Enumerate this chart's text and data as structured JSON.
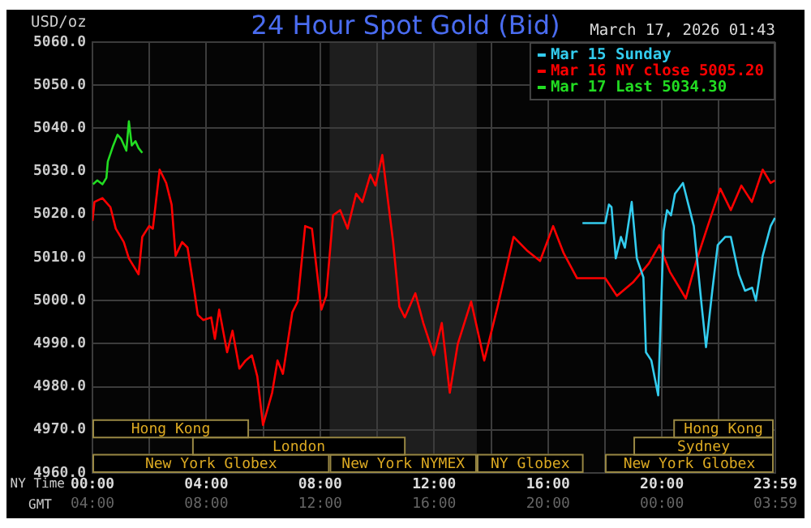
{
  "chart_data": {
    "type": "line",
    "title": "24 Hour Spot Gold (Bid)",
    "ylabel": "USD/oz",
    "xlabel": "NY Time",
    "x2label": "GMT",
    "annotations": [
      "March 17, 2026 01:43"
    ],
    "xlim": [
      0,
      23.9833
    ],
    "xticks": [
      {
        "value": 0,
        "label": "00:00"
      },
      {
        "value": 2,
        "label": null
      },
      {
        "value": 4,
        "label": "04:00"
      },
      {
        "value": 6,
        "label": null
      },
      {
        "value": 8,
        "label": "08:00"
      },
      {
        "value": 10,
        "label": null
      },
      {
        "value": 12,
        "label": "12:00"
      },
      {
        "value": 14,
        "label": null
      },
      {
        "value": 16,
        "label": "16:00"
      },
      {
        "value": 18,
        "label": null
      },
      {
        "value": 20,
        "label": "20:00"
      },
      {
        "value": 22,
        "label": null
      },
      {
        "value": 23.9833,
        "label": "23:59"
      }
    ],
    "x2lim": [
      "2026-03-16T04:00",
      "2026-03-17T03:59"
    ],
    "x2ticks": [
      {
        "value": "2026-03-16T04:00",
        "label": "04:00"
      },
      {
        "value": "2026-03-16T08:00",
        "label": "08:00"
      },
      {
        "value": "2026-03-16T12:00",
        "label": "12:00"
      },
      {
        "value": "2026-03-16T16:00",
        "label": "16:00"
      },
      {
        "value": "2026-03-16T20:00",
        "label": "20:00"
      },
      {
        "value": "2026-03-17T00:00",
        "label": "00:00"
      },
      {
        "value": "2026-03-17T03:59",
        "label": "03:59"
      }
    ],
    "ylim": [
      4960,
      5060
    ],
    "yticks": [
      {
        "value": 4960,
        "label": "4960.0"
      },
      {
        "value": 4970,
        "label": "4970.0"
      },
      {
        "value": 4980,
        "label": "4980.0"
      },
      {
        "value": 4990,
        "label": "4990.0"
      },
      {
        "value": 5000,
        "label": "5000.0"
      },
      {
        "value": 5010,
        "label": "5010.0"
      },
      {
        "value": 5020,
        "label": "5020.0"
      },
      {
        "value": 5030,
        "label": "5030.0"
      },
      {
        "value": 5040,
        "label": "5040.0"
      },
      {
        "value": 5050,
        "label": "5050.0"
      },
      {
        "value": 5060,
        "label": "5060.0"
      }
    ],
    "grid": true,
    "legend": "top right",
    "marker": "none",
    "line_style": "solid",
    "bands": [
      {
        "axis": "x",
        "from": 8.33,
        "to": 13.5,
        "label": null,
        "color": "#1e1e1e"
      },
      {
        "axis": "x",
        "from": 0,
        "to": 8.33,
        "label": "New York Globex"
      },
      {
        "axis": "x",
        "from": 8.33,
        "to": 13.5,
        "label": "New York NYMEX"
      },
      {
        "axis": "x",
        "from": 13.5,
        "to": 17.25,
        "label": "NY Globex"
      },
      {
        "axis": "x",
        "from": 18,
        "to": 24,
        "label": "New York Globex"
      },
      {
        "axis": "x",
        "from": 3.5,
        "to": 11,
        "label": "London"
      },
      {
        "axis": "x",
        "from": 19,
        "to": 24,
        "label": "Sydney"
      },
      {
        "axis": "x",
        "from": 0,
        "to": 5.5,
        "label": "Hong Kong"
      },
      {
        "axis": "x",
        "from": 20.4,
        "to": 24,
        "label": "Hong Kong"
      }
    ],
    "series": [
      {
        "name": "Mar 15 Sunday",
        "color": "#33ccee",
        "x": [
          17.21,
          18.01,
          18.14,
          18.23,
          18.38,
          18.56,
          18.7,
          18.94,
          19.12,
          19.35,
          19.44,
          19.63,
          19.87,
          20.06,
          20.18,
          20.32,
          20.46,
          20.74,
          20.93,
          21.12,
          21.4,
          21.55,
          21.77,
          21.96,
          22.23,
          22.42,
          22.7,
          22.92,
          23.17,
          23.3,
          23.54,
          23.82,
          23.97
        ],
        "values": [
          5018,
          5018,
          5022.3,
          5021.7,
          5009.8,
          5014.8,
          5012.3,
          5022.9,
          5009.8,
          5005.4,
          4988,
          4986.1,
          4978,
          5016.1,
          5021,
          5019.8,
          5024.8,
          5027.3,
          5022.3,
          5017.3,
          4998.6,
          4989.2,
          5002.3,
          5012.9,
          5014.8,
          5014.8,
          5006.1,
          5002.3,
          5003,
          5000,
          5010.4,
          5017.3,
          5019.2
        ]
      },
      {
        "name": "Mar 16 NY close 5005.20",
        "color": "#ff0000",
        "x": [
          0,
          0.07,
          0.35,
          0.63,
          0.82,
          1.1,
          1.28,
          1.62,
          1.75,
          1.99,
          2.12,
          2.36,
          2.59,
          2.78,
          2.92,
          3.15,
          3.34,
          3.56,
          3.7,
          3.89,
          4.17,
          4.3,
          4.45,
          4.73,
          4.92,
          5.16,
          5.38,
          5.6,
          5.79,
          5.99,
          6.31,
          6.5,
          6.69,
          7.02,
          7.21,
          7.47,
          7.71,
          8.04,
          8.21,
          8.45,
          8.7,
          8.96,
          9.26,
          9.48,
          9.76,
          9.94,
          10.18,
          10.56,
          10.78,
          10.97,
          11.34,
          11.62,
          11.99,
          12.27,
          12.55,
          12.83,
          13.3,
          13.76,
          14.23,
          14.79,
          15.25,
          15.72,
          16.18,
          16.55,
          17.02,
          18.01,
          18.42,
          18.98,
          19.54,
          19.91,
          20.28,
          20.84,
          21.21,
          21.58,
          22.05,
          22.42,
          22.79,
          23.16,
          23.54,
          23.82,
          23.97
        ],
        "values": [
          5018.5,
          5022.9,
          5023.8,
          5021.7,
          5016.7,
          5013.6,
          5009.8,
          5006.1,
          5014.8,
          5017.3,
          5016.7,
          5030.4,
          5027.3,
          5022.3,
          5010.4,
          5013.6,
          5012.3,
          5003,
          4996.7,
          4995.5,
          4996.1,
          4991.1,
          4997.9,
          4988,
          4993,
          4984.2,
          4986.1,
          4987.3,
          4982.4,
          4971.1,
          4978.6,
          4986.1,
          4983,
          4997.3,
          4999.8,
          5017.3,
          5016.7,
          4997.9,
          5001.1,
          5019.8,
          5021,
          5016.7,
          5024.8,
          5022.9,
          5029.2,
          5026.7,
          5033.8,
          5013.6,
          4998.6,
          4996.1,
          5001.7,
          4994.8,
          4987.3,
          4994.8,
          4978.6,
          4989.9,
          4999.8,
          4986.1,
          4998.6,
          5014.8,
          5011.7,
          5009.2,
          5017.3,
          5011,
          5005.2,
          5005.2,
          5001.1,
          5004.2,
          5008.6,
          5012.9,
          5006.7,
          5000.5,
          5009.2,
          5016.7,
          5026,
          5021,
          5026.7,
          5022.9,
          5030.4,
          5027.3,
          5027.9
        ]
      },
      {
        "name": "Mar 17 Last 5034.30",
        "color": "#22dd22",
        "x": [
          0.02,
          0.17,
          0.35,
          0.49,
          0.54,
          0.73,
          0.88,
          1.01,
          1.19,
          1.28,
          1.38,
          1.51,
          1.62,
          1.75
        ],
        "values": [
          5027,
          5027.9,
          5027,
          5028.5,
          5032.3,
          5036,
          5038.5,
          5037.5,
          5034.8,
          5041.6,
          5036,
          5037,
          5035.4,
          5034.3
        ]
      }
    ]
  }
}
